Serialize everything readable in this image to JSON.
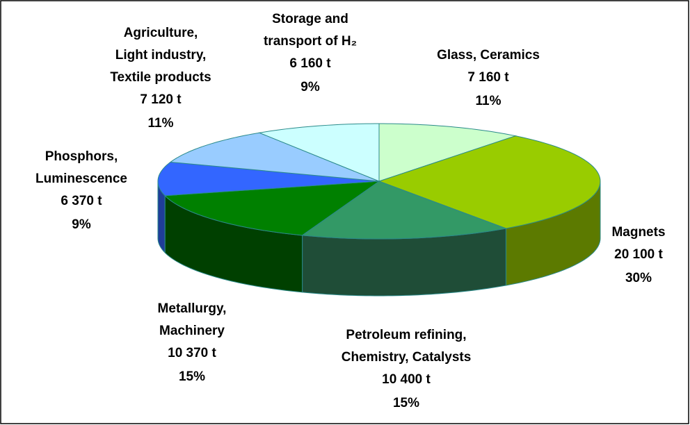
{
  "chart_data": {
    "type": "pie3d",
    "categories": [
      [
        "Glass, Ceramics"
      ],
      [
        "Magnets"
      ],
      [
        "Petroleum refining,",
        "Chemistry, Catalysts"
      ],
      [
        "Metallurgy,",
        "Machinery"
      ],
      [
        "Phosphors,",
        "Luminescence"
      ],
      [
        "Agriculture,",
        "Light industry,",
        "Textile products"
      ],
      [
        "Storage and",
        "transport of H₂"
      ]
    ],
    "values": [
      7160,
      20100,
      10400,
      10370,
      6370,
      7120,
      6160
    ],
    "value_labels": [
      "7 160 t",
      "20 100 t",
      "10 400 t",
      "10 370 t",
      "6 370 t",
      "7 120 t",
      "6 160 t"
    ],
    "percents": [
      11,
      30,
      15,
      15,
      9,
      11,
      9
    ],
    "percent_labels": [
      "11%",
      "30%",
      "15%",
      "15%",
      "9%",
      "11%",
      "9%"
    ],
    "colors": [
      "#ccffcc",
      "#99cc00",
      "#339966",
      "#008000",
      "#3366ff",
      "#99ccff",
      "#ccffff"
    ],
    "side_colors": [
      "#8fb38f",
      "#5c7a00",
      "#1f4d37",
      "#004000",
      "#1f3d99",
      "#5c7a99",
      "#7a9999"
    ]
  }
}
